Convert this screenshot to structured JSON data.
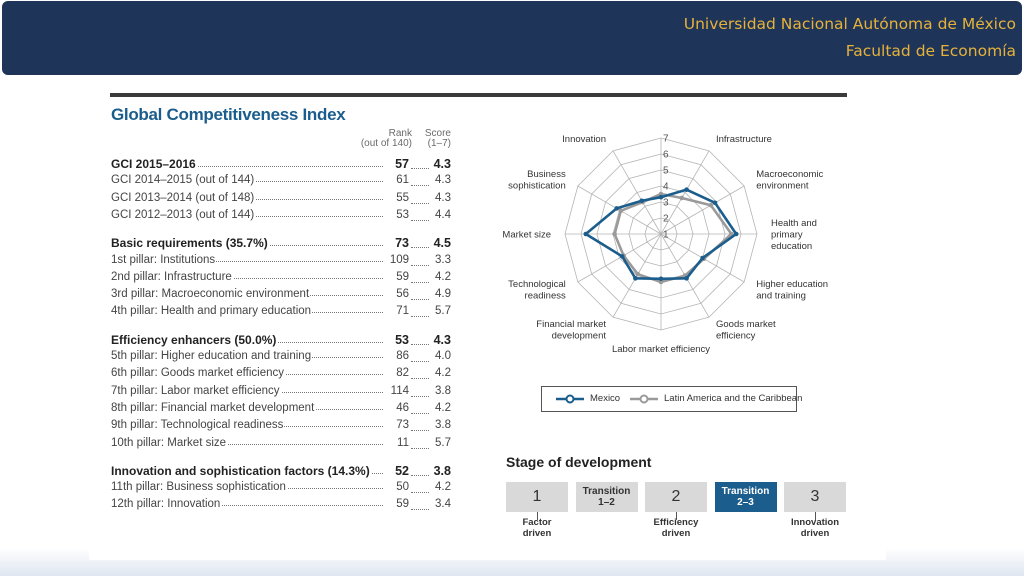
{
  "header": {
    "university": "Universidad Nacional Autónoma de México",
    "faculty": "Facultad de Economía"
  },
  "gci": {
    "title": "Global Competitiveness Index",
    "rank_header": "Rank\n(out of 140)",
    "score_header": "Score\n(1–7)",
    "rows": [
      {
        "label": "GCI 2015–2016",
        "rank": "57",
        "score": "4.3",
        "head": true
      },
      {
        "label": "GCI 2014–2015 (out of 144)",
        "rank": "61",
        "score": "4.3"
      },
      {
        "label": "GCI 2013–2014 (out of 148)",
        "rank": "55",
        "score": "4.3"
      },
      {
        "label": "GCI 2012–2013 (out of 144)",
        "rank": "53",
        "score": "4.4"
      },
      {
        "label": "Basic requirements (35.7%)",
        "rank": "73",
        "score": "4.5",
        "head": true
      },
      {
        "label": "1st pillar: Institutions",
        "rank": "109",
        "score": "3.3"
      },
      {
        "label": "2nd pillar: Infrastructure",
        "rank": "59",
        "score": "4.2"
      },
      {
        "label": "3rd pillar: Macroeconomic environment",
        "rank": "56",
        "score": "4.9"
      },
      {
        "label": "4th pillar: Health and primary education",
        "rank": "71",
        "score": "5.7"
      },
      {
        "label": "Efficiency enhancers (50.0%)",
        "rank": "53",
        "score": "4.3",
        "head": true
      },
      {
        "label": "5th pillar: Higher education and training",
        "rank": "86",
        "score": "4.0"
      },
      {
        "label": "6th pillar: Goods market efficiency",
        "rank": "82",
        "score": "4.2"
      },
      {
        "label": "7th pillar: Labor market efficiency",
        "rank": "114",
        "score": "3.8"
      },
      {
        "label": "8th pillar: Financial market development",
        "rank": "46",
        "score": "4.2"
      },
      {
        "label": "9th pillar: Technological readiness",
        "rank": "73",
        "score": "3.8"
      },
      {
        "label": "10th pillar: Market size",
        "rank": "11",
        "score": "5.7"
      },
      {
        "label": "Innovation and sophistication factors (14.3%)",
        "rank": "52",
        "score": "3.8",
        "head": true
      },
      {
        "label": "11th pillar: Business sophistication",
        "rank": "50",
        "score": "4.2"
      },
      {
        "label": "12th pillar: Innovation",
        "rank": "59",
        "score": "3.4"
      }
    ]
  },
  "chart_data": {
    "type": "radar",
    "title": "",
    "range": [
      1,
      7
    ],
    "ring_labels": [
      "1",
      "2",
      "3",
      "4",
      "5",
      "6",
      "7"
    ],
    "categories": [
      "Institutions",
      "Infrastructure",
      "Macroeconomic\nenvironment",
      "Health and\nprimary\neducation",
      "Higher education\nand training",
      "Goods market\nefficiency",
      "Labor market efficiency",
      "Financial market\ndevelopment",
      "Technological\nreadiness",
      "Market size",
      "Business\nsophistication",
      "Innovation"
    ],
    "series": [
      {
        "name": "Mexico",
        "color": "#1b5d8c",
        "values": [
          3.3,
          4.2,
          4.9,
          5.7,
          4.0,
          4.2,
          3.8,
          4.2,
          3.8,
          5.7,
          4.2,
          3.4
        ]
      },
      {
        "name": "Latin America and the Caribbean",
        "color": "#9a9a9a",
        "values": [
          3.5,
          3.6,
          4.6,
          5.4,
          4.1,
          4.0,
          4.0,
          3.9,
          3.7,
          3.9,
          3.9,
          3.3
        ]
      }
    ],
    "legend_position": "bottom",
    "grid": true
  },
  "stage": {
    "title": "Stage of development",
    "boxes": [
      {
        "label": "1",
        "kind": "big",
        "active": false,
        "sub": "Factor\ndriven"
      },
      {
        "label": "Transition\n1–2",
        "kind": "small",
        "active": false,
        "sub": ""
      },
      {
        "label": "2",
        "kind": "big",
        "active": false,
        "sub": "Efficiency\ndriven"
      },
      {
        "label": "Transition\n2–3",
        "kind": "small",
        "active": true,
        "sub": ""
      },
      {
        "label": "3",
        "kind": "big",
        "active": false,
        "sub": "Innovation\ndriven"
      }
    ]
  }
}
